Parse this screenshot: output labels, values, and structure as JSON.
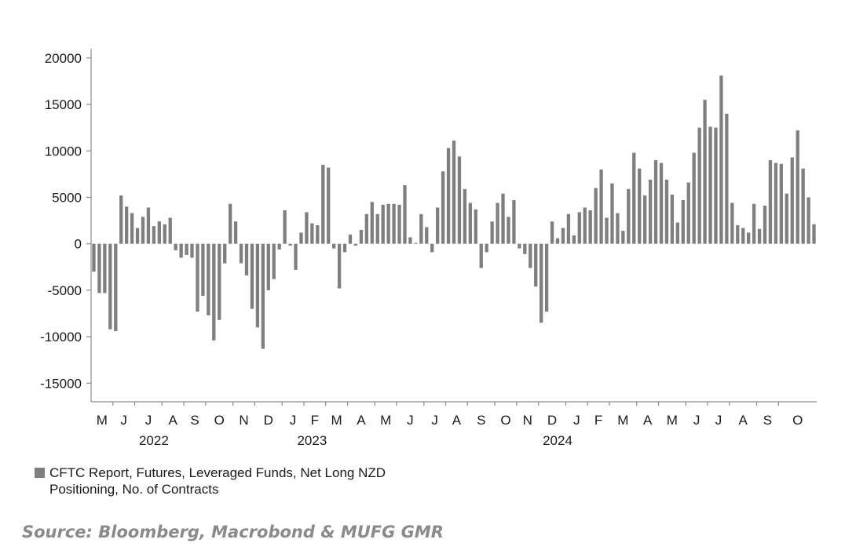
{
  "chart_data": {
    "type": "bar",
    "ylim": [
      -17000,
      21000
    ],
    "y_ticks": [
      20000,
      15000,
      10000,
      5000,
      0,
      -5000,
      -10000,
      -15000
    ],
    "y_tick_labels": [
      "20000",
      "15000",
      "10000",
      "5000",
      "0",
      "-5000",
      "-10000",
      "-15000"
    ],
    "month_labels": [
      "M",
      "J",
      "J",
      "A",
      "S",
      "O",
      "N",
      "D",
      "J",
      "F",
      "M",
      "A",
      "M",
      "J",
      "J",
      "A",
      "S",
      "O",
      "N",
      "D",
      "J",
      "F",
      "M",
      "A",
      "M",
      "J",
      "J",
      "A",
      "S",
      "O"
    ],
    "month_start_index": [
      0,
      4,
      8,
      13,
      17,
      21,
      26,
      30,
      35,
      39,
      43,
      47,
      52,
      56,
      61,
      65,
      69,
      74,
      78,
      82,
      87,
      91,
      95,
      100,
      104,
      109,
      113,
      117,
      122,
      126
    ],
    "year_labels": [
      "2022",
      "2023",
      "2024"
    ],
    "year_label_index": [
      11,
      40,
      85
    ],
    "legend": "CFTC Report, Futures, Leveraged Funds, Net Long NZD Positioning, No. of Contracts",
    "series": [
      {
        "name": "CFTC Report, Futures, Leveraged Funds, Net Long NZD Positioning, No. of Contracts",
        "color": "#7f7f7f",
        "values": [
          -3000,
          -5300,
          -5300,
          -9200,
          -9400,
          5200,
          4000,
          3300,
          1700,
          2900,
          3900,
          1900,
          2400,
          2100,
          2800,
          -700,
          -1500,
          -1200,
          -1500,
          -7300,
          -5600,
          -7700,
          -10400,
          -8200,
          -2100,
          4300,
          2400,
          -2100,
          -3400,
          -7000,
          -9000,
          -11300,
          -5000,
          -3800,
          -600,
          3600,
          -200,
          -2800,
          1200,
          3400,
          2200,
          2000,
          8500,
          8200,
          -500,
          -4800,
          -900,
          1000,
          -200,
          1500,
          3200,
          4500,
          3200,
          4200,
          4300,
          4300,
          4200,
          6300,
          700,
          100,
          3200,
          1800,
          -900,
          3900,
          7800,
          10300,
          11100,
          9400,
          5900,
          4400,
          3700,
          -2600,
          -900,
          2400,
          4400,
          5400,
          2900,
          4700,
          -500,
          -1100,
          -2600,
          -4600,
          -8500,
          -7300,
          2400,
          600,
          1700,
          3200,
          900,
          3400,
          3900,
          3600,
          6000,
          8000,
          2800,
          6500,
          3300,
          1400,
          5900,
          9800,
          8100,
          5200,
          6900,
          9000,
          8700,
          6900,
          5300,
          2300,
          4700,
          6600,
          9800,
          12500,
          15500,
          12600,
          12500,
          18100,
          14000,
          4400,
          2000,
          1700,
          1200,
          4300,
          1600,
          4100,
          9000,
          8700,
          8600,
          5400,
          9300,
          12200,
          8100,
          5000,
          2100
        ]
      }
    ]
  },
  "source": "Source: Bloomberg, Macrobond & MUFG GMR"
}
